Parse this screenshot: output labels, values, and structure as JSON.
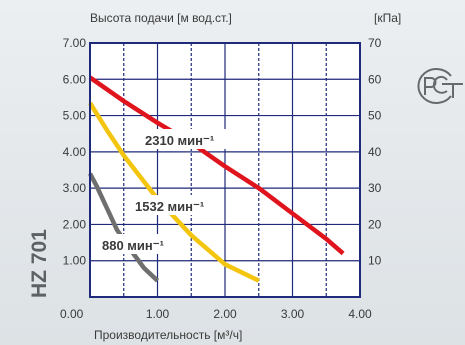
{
  "model_label": "HZ 701",
  "certification_mark": "РСТ",
  "chart_data": {
    "type": "line",
    "title": "",
    "ylabel": "Высота подачи [м вод.ст.]",
    "y2label": "[кПа]",
    "xlabel": "Производительность [м³/ч]",
    "xlim": [
      0,
      4
    ],
    "ylim": [
      0,
      7
    ],
    "y2lim": [
      0,
      70
    ],
    "x_ticks": [
      "0.00",
      "1.00",
      "2.00",
      "3.00",
      "4.00"
    ],
    "y_ticks": [
      "1.00",
      "2.00",
      "3.00",
      "4.00",
      "5.00",
      "6.00",
      "7.00"
    ],
    "y2_ticks": [
      "10",
      "20",
      "30",
      "40",
      "50",
      "60",
      "70"
    ],
    "grid": true,
    "series": [
      {
        "name": "2310 мин⁻¹",
        "color": "#e0141c",
        "x": [
          0.0,
          0.5,
          1.0,
          1.5,
          2.0,
          2.5,
          3.0,
          3.5,
          3.75
        ],
        "y": [
          6.05,
          5.4,
          4.8,
          4.25,
          3.6,
          3.0,
          2.3,
          1.6,
          1.2
        ]
      },
      {
        "name": "1532 мин⁻¹",
        "color": "#f3c50f",
        "x": [
          0.0,
          0.25,
          0.5,
          0.75,
          1.0,
          1.25,
          1.5,
          2.0,
          2.5
        ],
        "y": [
          5.35,
          4.6,
          3.9,
          3.3,
          2.7,
          2.2,
          1.7,
          0.9,
          0.45
        ]
      },
      {
        "name": "880 мин⁻¹",
        "color": "#6f6f6f",
        "x": [
          0.0,
          0.1,
          0.2,
          0.3,
          0.4,
          0.6,
          0.8,
          1.0
        ],
        "y": [
          3.4,
          3.05,
          2.65,
          2.25,
          1.85,
          1.3,
          0.8,
          0.45
        ]
      }
    ]
  }
}
